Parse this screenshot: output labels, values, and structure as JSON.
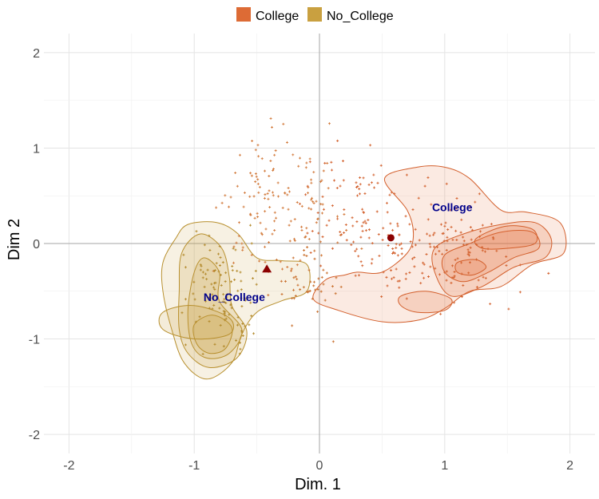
{
  "chart_data": {
    "type": "scatter",
    "title": "",
    "xlabel": "Dim. 1",
    "ylabel": "Dim 2",
    "xlim": [
      -2.2,
      2.2
    ],
    "ylim": [
      -2.2,
      2.2
    ],
    "x_ticks": [
      -2,
      -1,
      0,
      1,
      2
    ],
    "y_ticks": [
      -2,
      -1,
      0,
      1,
      2
    ],
    "grid": true,
    "legend": {
      "position": "top",
      "entries": [
        {
          "name": "College",
          "color": "#dd6b35"
        },
        {
          "name": "No_College",
          "color": "#c9a040"
        }
      ]
    },
    "groups": [
      {
        "name": "College",
        "label": "College",
        "label_pos": [
          1.06,
          0.38
        ],
        "mean": [
          0.57,
          0.06
        ],
        "mean_marker": "circle",
        "color": "#dd6b35",
        "fill": "#e4703a",
        "stroke": "#d35f2c",
        "density_levels": [
          [
            [
              0.3,
              -0.3
            ],
            [
              0.5,
              -0.3
            ],
            [
              0.7,
              -0.1
            ],
            [
              0.75,
              0.1
            ],
            [
              0.7,
              0.35
            ],
            [
              0.52,
              0.68
            ],
            [
              0.78,
              0.8
            ],
            [
              1.0,
              0.8
            ],
            [
              1.2,
              0.68
            ],
            [
              1.45,
              0.35
            ],
            [
              1.65,
              0.33
            ],
            [
              1.92,
              0.22
            ],
            [
              1.95,
              -0.1
            ],
            [
              1.7,
              -0.22
            ],
            [
              1.45,
              -0.45
            ],
            [
              1.2,
              -0.5
            ],
            [
              1.0,
              -0.68
            ],
            [
              0.8,
              -0.8
            ],
            [
              0.5,
              -0.82
            ],
            [
              0.15,
              -0.7
            ],
            [
              -0.05,
              -0.58
            ],
            [
              0.05,
              -0.38
            ],
            [
              0.2,
              -0.33
            ]
          ],
          [
            [
              0.92,
              -0.05
            ],
            [
              1.15,
              0.1
            ],
            [
              1.45,
              0.2
            ],
            [
              1.72,
              0.22
            ],
            [
              1.85,
              0.05
            ],
            [
              1.8,
              -0.15
            ],
            [
              1.55,
              -0.25
            ],
            [
              1.3,
              -0.45
            ],
            [
              1.05,
              -0.55
            ],
            [
              0.92,
              -0.3
            ]
          ],
          [
            [
              1.0,
              -0.12
            ],
            [
              1.2,
              0.0
            ],
            [
              1.45,
              0.12
            ],
            [
              1.7,
              0.12
            ],
            [
              1.75,
              -0.05
            ],
            [
              1.55,
              -0.15
            ],
            [
              1.35,
              -0.3
            ],
            [
              1.15,
              -0.4
            ],
            [
              1.0,
              -0.3
            ]
          ],
          [
            [
              1.25,
              0.05
            ],
            [
              1.48,
              0.18
            ],
            [
              1.7,
              0.15
            ],
            [
              1.72,
              0.0
            ],
            [
              1.5,
              -0.05
            ],
            [
              1.3,
              -0.05
            ]
          ],
          [
            [
              0.65,
              -0.55
            ],
            [
              0.85,
              -0.5
            ],
            [
              1.05,
              -0.58
            ],
            [
              1.0,
              -0.7
            ],
            [
              0.78,
              -0.72
            ],
            [
              0.65,
              -0.65
            ]
          ],
          [
            [
              1.1,
              -0.2
            ],
            [
              1.25,
              -0.17
            ],
            [
              1.33,
              -0.25
            ],
            [
              1.22,
              -0.33
            ],
            [
              1.1,
              -0.3
            ]
          ]
        ]
      },
      {
        "name": "No_College",
        "label": "No_College",
        "label_pos": [
          -0.68,
          -0.56
        ],
        "mean": [
          -0.42,
          -0.27
        ],
        "mean_marker": "triangle",
        "color": "#c9a040",
        "fill": "#c9a040",
        "stroke": "#b8902f",
        "density_levels": [
          [
            [
              -1.15,
              0.05
            ],
            [
              -1.05,
              0.2
            ],
            [
              -0.82,
              0.22
            ],
            [
              -0.65,
              0.1
            ],
            [
              -0.5,
              -0.15
            ],
            [
              -0.3,
              -0.18
            ],
            [
              -0.1,
              -0.22
            ],
            [
              -0.1,
              -0.5
            ],
            [
              -0.3,
              -0.6
            ],
            [
              -0.5,
              -0.72
            ],
            [
              -0.62,
              -0.95
            ],
            [
              -0.7,
              -1.25
            ],
            [
              -0.9,
              -1.42
            ],
            [
              -1.08,
              -1.25
            ],
            [
              -1.18,
              -0.9
            ],
            [
              -1.25,
              -0.5
            ],
            [
              -1.25,
              -0.2
            ]
          ],
          [
            [
              -1.1,
              -0.1
            ],
            [
              -0.95,
              0.1
            ],
            [
              -0.78,
              -0.05
            ],
            [
              -0.72,
              -0.35
            ],
            [
              -0.7,
              -0.65
            ],
            [
              -0.58,
              -0.92
            ],
            [
              -0.66,
              -1.2
            ],
            [
              -0.88,
              -1.3
            ],
            [
              -1.05,
              -1.15
            ],
            [
              -1.12,
              -0.9
            ],
            [
              -1.12,
              -0.5
            ]
          ],
          [
            [
              -1.0,
              -0.3
            ],
            [
              -0.92,
              -0.15
            ],
            [
              -0.8,
              -0.3
            ],
            [
              -0.8,
              -0.6
            ],
            [
              -0.62,
              -0.9
            ],
            [
              -0.72,
              -1.15
            ],
            [
              -0.9,
              -1.2
            ],
            [
              -1.02,
              -1.05
            ],
            [
              -1.05,
              -0.7
            ]
          ],
          [
            [
              -1.0,
              -0.85
            ],
            [
              -0.85,
              -0.75
            ],
            [
              -0.7,
              -0.88
            ],
            [
              -0.75,
              -1.1
            ],
            [
              -0.88,
              -1.15
            ],
            [
              -0.98,
              -1.05
            ]
          ],
          [
            [
              -1.25,
              -0.72
            ],
            [
              -1.0,
              -0.65
            ],
            [
              -0.72,
              -0.78
            ],
            [
              -0.72,
              -0.95
            ],
            [
              -1.0,
              -1.0
            ],
            [
              -1.25,
              -0.9
            ]
          ]
        ]
      }
    ]
  }
}
